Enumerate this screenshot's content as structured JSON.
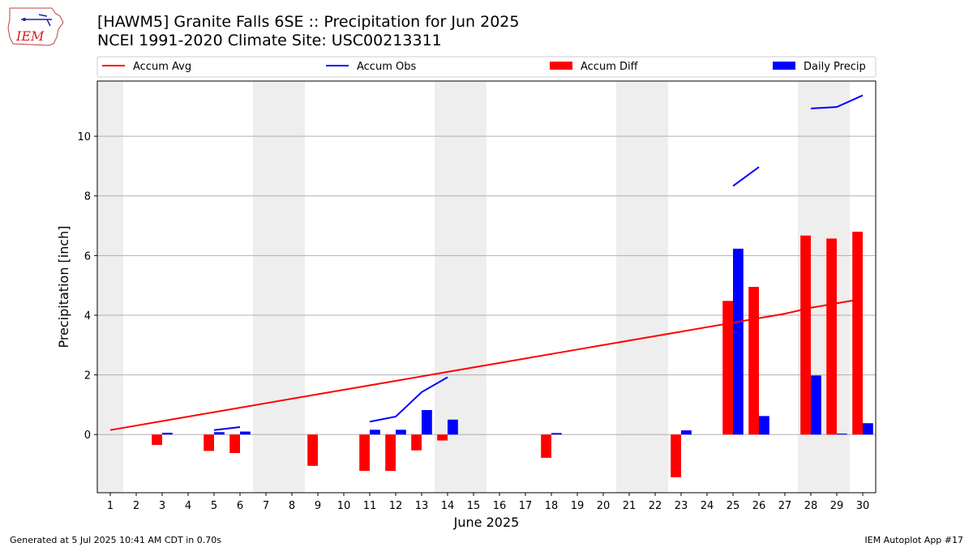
{
  "header": {
    "title_line1": "[HAWM5] Granite Falls 6SE :: Precipitation for Jun 2025",
    "title_line2": "NCEI 1991-2020 Climate Site: USC00213311"
  },
  "logo": {
    "text": "IEM"
  },
  "footer": {
    "left": "Generated at 5 Jul 2025 10:41 AM CDT in 0.70s",
    "right": "IEM Autoplot App #17"
  },
  "colors": {
    "accum_avg": "#ff0000",
    "accum_obs": "#0000ff",
    "accum_diff": "#ff0000",
    "daily_precip": "#0000ff",
    "weekend_shade": "#eeeeee",
    "grid": "#b0b0b0"
  },
  "chart_data": {
    "type": "bar",
    "title": "[HAWM5] Granite Falls 6SE :: Precipitation for Jun 2025",
    "subtitle": "NCEI 1991-2020 Climate Site: USC00213311",
    "xlabel": "June 2025",
    "ylabel": "Precipitation [inch]",
    "x": [
      1,
      2,
      3,
      4,
      5,
      6,
      7,
      8,
      9,
      10,
      11,
      12,
      13,
      14,
      15,
      16,
      17,
      18,
      19,
      20,
      21,
      22,
      23,
      24,
      25,
      26,
      27,
      28,
      29,
      30
    ],
    "xlim": [
      0.5,
      30.5
    ],
    "ylim": [
      -1.95,
      11.85
    ],
    "yticks": [
      0,
      2,
      4,
      6,
      8,
      10
    ],
    "grid": "y",
    "legend_position": "top",
    "shaded_days": [
      1,
      7,
      8,
      14,
      15,
      21,
      22,
      28,
      29
    ],
    "series": [
      {
        "name": "Accum Avg",
        "kind": "line",
        "color": "#ff0000",
        "values": [
          0.15,
          0.3,
          0.45,
          0.6,
          0.75,
          0.9,
          1.05,
          1.2,
          1.35,
          1.5,
          1.65,
          1.8,
          1.95,
          2.1,
          2.25,
          2.4,
          2.55,
          2.7,
          2.85,
          3.0,
          3.15,
          3.3,
          3.45,
          3.6,
          3.75,
          3.9,
          4.05,
          4.25,
          4.4,
          4.55
        ]
      },
      {
        "name": "Accum Obs",
        "kind": "line",
        "color": "#0000ff",
        "values": [
          null,
          null,
          null,
          null,
          0.15,
          0.25,
          null,
          null,
          null,
          null,
          0.43,
          0.6,
          1.42,
          1.92,
          null,
          null,
          null,
          null,
          null,
          null,
          null,
          null,
          null,
          null,
          8.33,
          8.97,
          null,
          10.93,
          10.98,
          11.37
        ]
      },
      {
        "name": "Accum Diff",
        "kind": "bar",
        "color": "#ff0000",
        "values": [
          0,
          0,
          -0.35,
          0,
          -0.55,
          -0.62,
          0,
          0,
          -1.05,
          0,
          -1.22,
          -1.22,
          -0.53,
          -0.2,
          0,
          0,
          0,
          -0.78,
          0,
          0,
          0,
          0,
          -1.43,
          0,
          4.48,
          4.95,
          0,
          6.67,
          6.57,
          6.8
        ]
      },
      {
        "name": "Daily Precip",
        "kind": "bar",
        "color": "#0000ff",
        "values": [
          0,
          0,
          0.06,
          0,
          0.08,
          0.1,
          0,
          0,
          0,
          0,
          0.16,
          0.16,
          0.82,
          0.5,
          0,
          0,
          0,
          0.05,
          0,
          0,
          0,
          0,
          0.14,
          0,
          6.23,
          0.62,
          0,
          1.98,
          0.03,
          0.38
        ]
      }
    ]
  }
}
